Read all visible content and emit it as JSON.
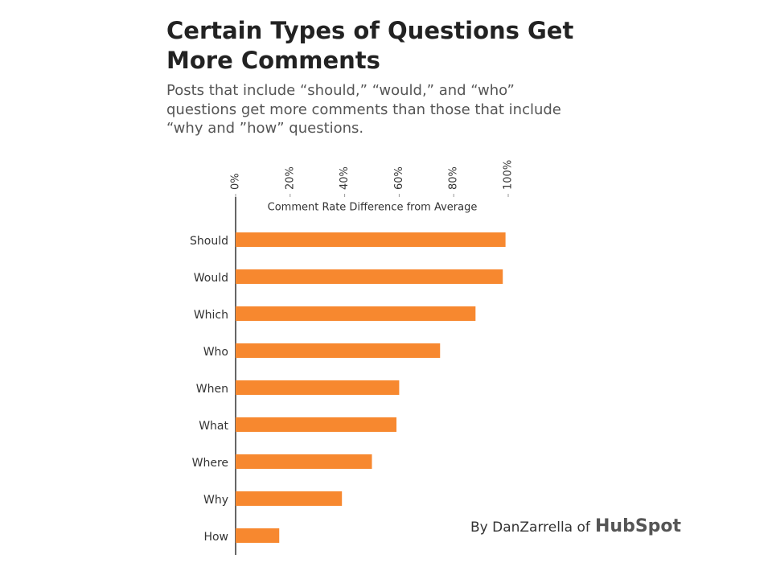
{
  "chart_data": {
    "type": "bar",
    "orientation": "horizontal",
    "title": [
      "Certain Types of Questions Get",
      "More Comments"
    ],
    "subtitle": [
      "Posts that include “should,” “would,” and “who”",
      "questions get more comments than those that include",
      "“why and ”how” questions."
    ],
    "x_label": "Comment Rate Difference from Average",
    "categories": [
      "Should",
      "Would",
      "Which",
      "Who",
      "When",
      "What",
      "Where",
      "Why",
      "How"
    ],
    "values": [
      99,
      98,
      88,
      75,
      60,
      59,
      50,
      39,
      16
    ],
    "color": "#f7882f",
    "xlim": [
      0,
      100
    ],
    "xticks": [
      {
        "value": 0,
        "label": "0%"
      },
      {
        "value": 20,
        "label": "20%"
      },
      {
        "value": 40,
        "label": "40%"
      },
      {
        "value": 60,
        "label": "60%"
      },
      {
        "value": 80,
        "label": "80%"
      },
      {
        "value": 100,
        "label": "100%"
      }
    ],
    "credit": "By DanZarrella of",
    "logo": "HubSpot"
  }
}
